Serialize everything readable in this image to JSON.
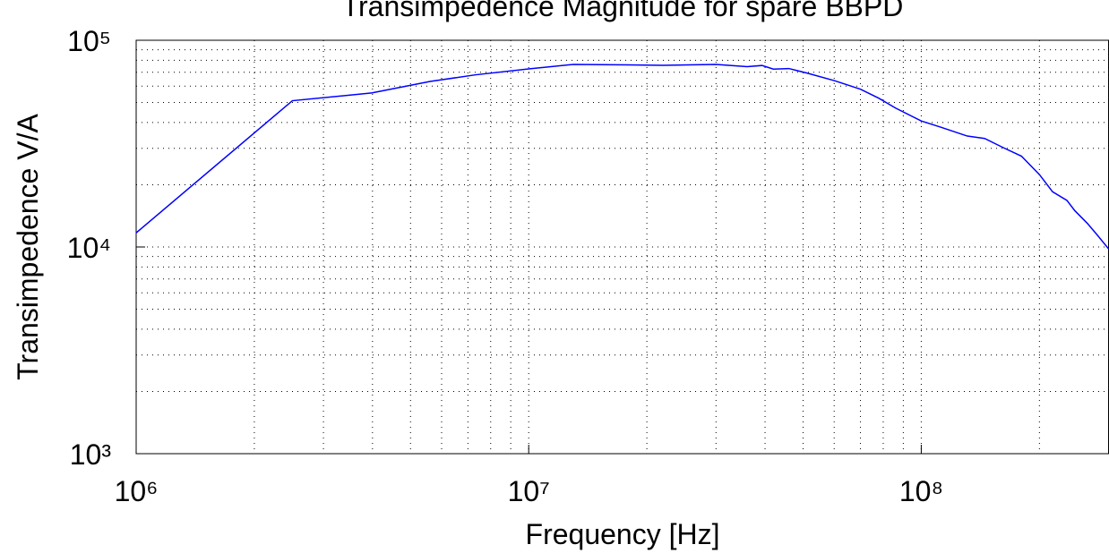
{
  "chart_data": {
    "type": "line",
    "title": "Transimpedence Magnitude for spare BBPD",
    "xlabel": "Frequency [Hz]",
    "ylabel": "Transimpedence V/A",
    "log_x": true,
    "log_y": true,
    "grid": true,
    "minor_grid": true,
    "xlim": [
      1000000,
      300000000
    ],
    "ylim": [
      1000,
      100000
    ],
    "xticks": [
      {
        "value": 1000000,
        "label": "10⁶"
      },
      {
        "value": 10000000,
        "label": "10⁷"
      },
      {
        "value": 100000000,
        "label": "10⁸"
      }
    ],
    "yticks": [
      {
        "value": 1000,
        "label": "10³"
      },
      {
        "value": 10000,
        "label": "10⁴"
      },
      {
        "value": 100000,
        "label": "10⁵"
      }
    ],
    "series": [
      {
        "color": "#0000ff",
        "x": [
          1000000,
          2500000,
          3980000,
          5610000,
          7300000,
          10000000,
          13000000,
          17800000,
          22000000,
          30000000,
          36000000,
          39300000,
          42000000,
          46000000,
          51000000,
          60000000,
          70000000,
          78000000,
          86000000,
          100000000,
          112000000,
          131000000,
          145000000,
          162000000,
          180000000,
          200000000,
          216000000,
          235000000,
          246000000,
          265000000,
          280000000,
          300000000
        ],
        "values": [
          11700,
          51000,
          55600,
          63200,
          68000,
          72700,
          76400,
          76000,
          75600,
          76400,
          74500,
          75500,
          72500,
          73000,
          69500,
          63800,
          58000,
          52400,
          47000,
          40700,
          38000,
          34400,
          33500,
          30200,
          27500,
          22400,
          18500,
          16800,
          15000,
          13000,
          11500,
          9800
        ]
      }
    ]
  }
}
